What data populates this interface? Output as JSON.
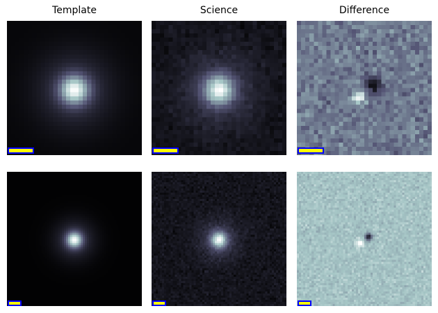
{
  "columns": [
    {
      "title": "Template"
    },
    {
      "title": "Science"
    },
    {
      "title": "Difference"
    }
  ],
  "colormap": "bone",
  "scale_bar_colors": {
    "fill": "#ffff00",
    "edge": "#0000ff"
  }
}
